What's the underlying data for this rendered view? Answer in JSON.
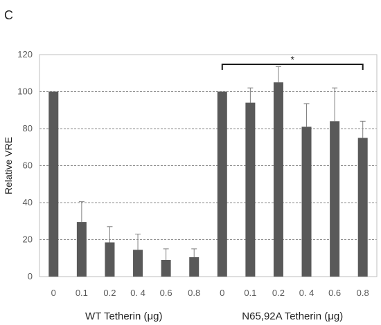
{
  "panel_label": "C",
  "chart_data": {
    "type": "bar",
    "title": "",
    "ylabel": "Relative VRE",
    "ylim": [
      0,
      120
    ],
    "yticks": [
      0,
      20,
      40,
      60,
      80,
      100,
      120
    ],
    "grid": "horizontal dashed",
    "bar_color": "#595959",
    "categories": [
      "0",
      "0.1",
      "0.2",
      "0. 4",
      "0.6",
      "0.8",
      "0",
      "0.1",
      "0.2",
      "0. 4",
      "0.6",
      "0.8"
    ],
    "values": [
      100,
      29.5,
      18.5,
      14.5,
      9,
      10.5,
      100,
      94,
      105,
      81,
      84,
      75
    ],
    "error_plus": [
      0,
      11,
      8.5,
      8.5,
      6,
      4.5,
      0,
      8,
      8.5,
      12.5,
      18,
      9
    ],
    "groups": [
      {
        "label": "WT Tetherin (μg)",
        "start": 0,
        "end": 5
      },
      {
        "label": "N65,92A Tetherin (μg)",
        "start": 6,
        "end": 11
      }
    ],
    "significance": {
      "label": "*",
      "from": 6,
      "to": 11
    }
  }
}
